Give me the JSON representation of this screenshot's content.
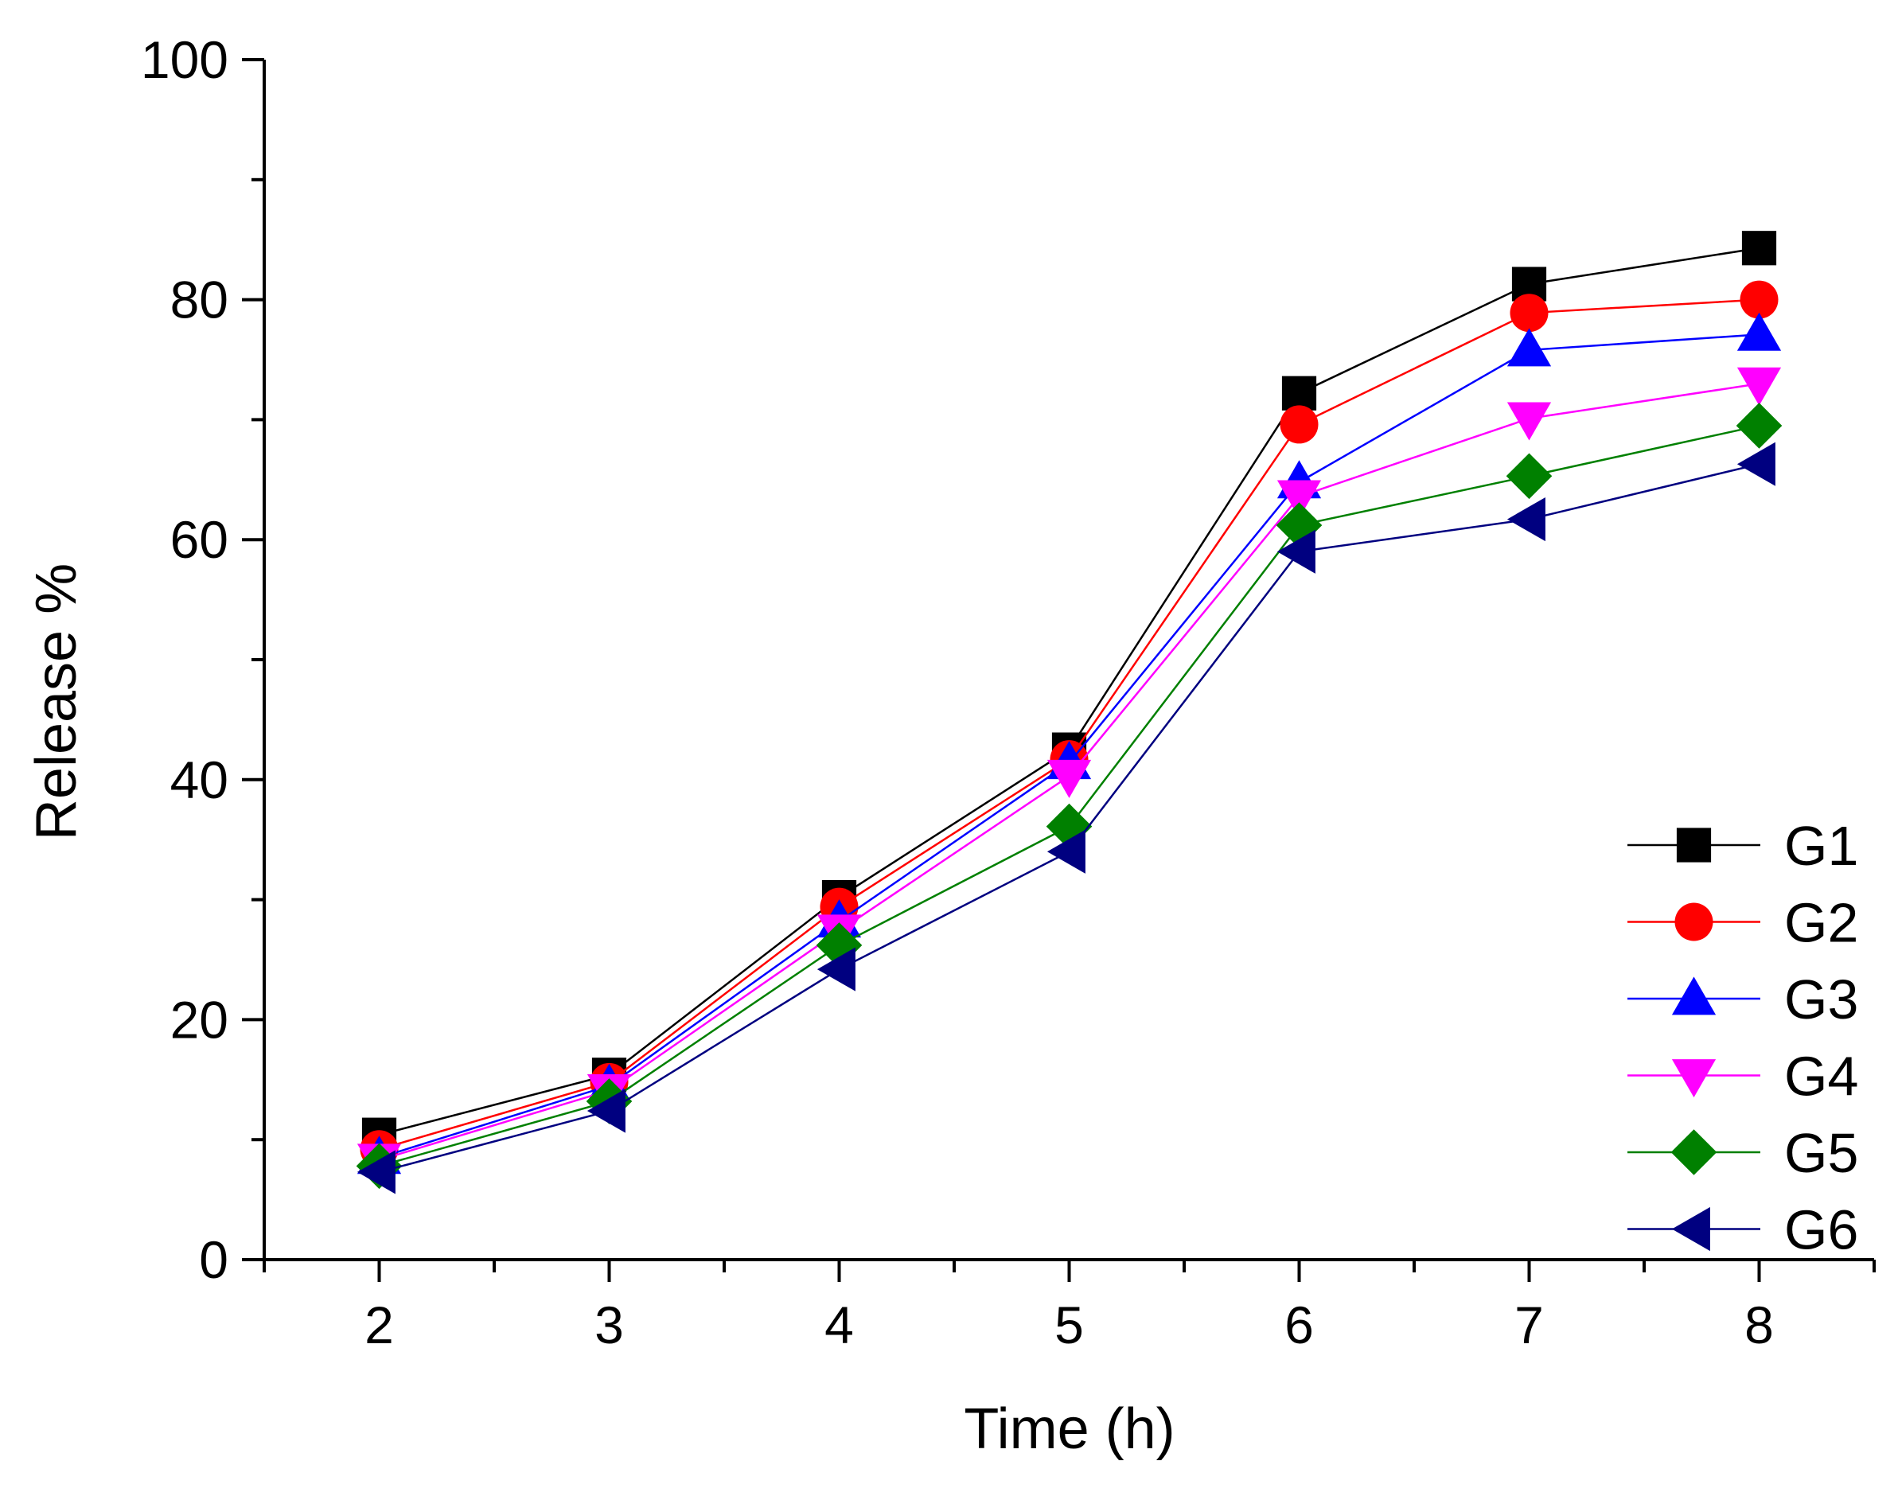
{
  "chart_data": {
    "type": "line",
    "title": "",
    "xlabel": "Time (h)",
    "ylabel": "Release %",
    "x": [
      2,
      3,
      4,
      5,
      6,
      7,
      8
    ],
    "xlim": [
      1.5,
      8.5
    ],
    "ylim": [
      0,
      100
    ],
    "xticks": [
      "2",
      "3",
      "4",
      "5",
      "6",
      "7",
      "8"
    ],
    "yticks": [
      "0",
      "20",
      "40",
      "60",
      "80",
      "100"
    ],
    "grid": false,
    "legend_position": "bottom-right",
    "series": [
      {
        "name": "G1",
        "marker": "square",
        "color": "#000000",
        "values": [
          10.4,
          15.4,
          30.2,
          42.5,
          72.2,
          81.3,
          84.3
        ]
      },
      {
        "name": "G2",
        "marker": "circle",
        "color": "#ff0000",
        "values": [
          9.2,
          14.8,
          29.4,
          41.7,
          69.6,
          78.9,
          80.0
        ]
      },
      {
        "name": "G3",
        "marker": "triangle-up",
        "color": "#0000ff",
        "values": [
          8.5,
          14.5,
          28.2,
          41.4,
          64.8,
          75.8,
          77.1
        ]
      },
      {
        "name": "G4",
        "marker": "triangle-down",
        "color": "#ff00ff",
        "values": [
          8.3,
          14.1,
          27.4,
          40.3,
          63.6,
          70.1,
          73.0
        ]
      },
      {
        "name": "G5",
        "marker": "diamond",
        "color": "#008000",
        "values": [
          7.8,
          13.2,
          26.2,
          36.1,
          61.2,
          65.3,
          69.5
        ]
      },
      {
        "name": "G6",
        "marker": "triangle-left",
        "color": "#000080",
        "values": [
          7.3,
          12.4,
          24.2,
          34.0,
          59.0,
          61.7,
          66.3
        ]
      }
    ]
  }
}
